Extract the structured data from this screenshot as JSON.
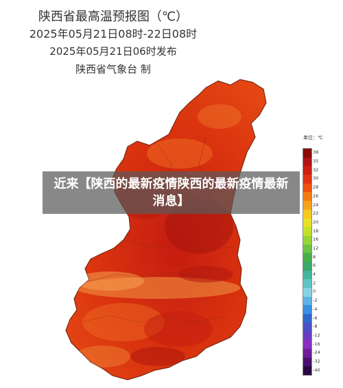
{
  "header": {
    "title": "陕西省最高温预报图（℃）",
    "period": "2025年05月21日08时-22日08时",
    "issued": "2025年05月21日06时发布",
    "publisher": "陕西省气象台  制"
  },
  "legend": {
    "title": "单位：℃",
    "entries": [
      {
        "label": "38",
        "color": "#8b0a0a"
      },
      {
        "label": "35",
        "color": "#b01414"
      },
      {
        "label": "32",
        "color": "#cc1f14"
      },
      {
        "label": "30",
        "color": "#e03312"
      },
      {
        "label": "28",
        "color": "#ee5010"
      },
      {
        "label": "26",
        "color": "#f57a12"
      },
      {
        "label": "24",
        "color": "#f5a21a"
      },
      {
        "label": "22",
        "color": "#f5c81f"
      },
      {
        "label": "20",
        "color": "#e8e224"
      },
      {
        "label": "18",
        "color": "#c2e12c"
      },
      {
        "label": "16",
        "color": "#96d438"
      },
      {
        "label": "12",
        "color": "#6cc242"
      },
      {
        "label": "8",
        "color": "#47b04a"
      },
      {
        "label": "6",
        "color": "#3aa86a"
      },
      {
        "label": "4",
        "color": "#43b59a"
      },
      {
        "label": "2",
        "color": "#5ec4c2"
      },
      {
        "label": "0",
        "color": "#86d2e2"
      },
      {
        "label": "-2",
        "color": "#5fb2e6"
      },
      {
        "label": "-4",
        "color": "#3d8fe0"
      },
      {
        "label": "-6",
        "color": "#2f68cc"
      },
      {
        "label": "-8",
        "color": "#4a50c8"
      },
      {
        "label": "-12",
        "color": "#6a3cc4"
      },
      {
        "label": "-16",
        "color": "#8a2ec0"
      },
      {
        "label": "-24",
        "color": "#6e1c9a"
      },
      {
        "label": "-32",
        "color": "#4a1070"
      },
      {
        "label": "-40",
        "color": "#2a0845"
      }
    ]
  },
  "banner": {
    "text": "近来【陕西的最新疫情陕西的最新疫情最新消息】"
  },
  "colors": {
    "map_base": "#d9330f",
    "map_hot": "#b3170d",
    "map_warm": "#ee6a22",
    "border": "#7a2a12"
  }
}
